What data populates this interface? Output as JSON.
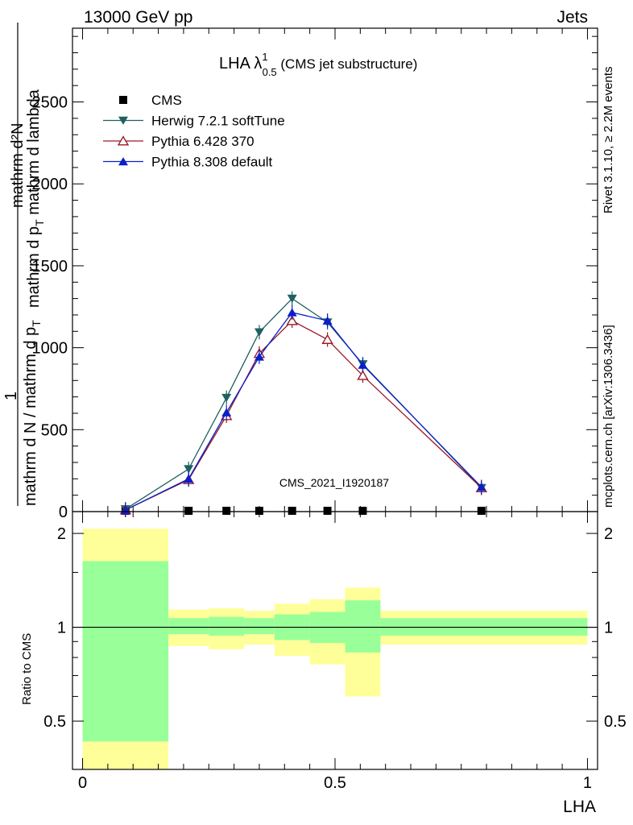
{
  "header": {
    "left": "13000 GeV pp",
    "right": "Jets"
  },
  "side": {
    "top": "Rivet 3.1.10, ≥ 2.2M events",
    "bottom": "mcplots.cern.ch [arXiv:1306.3436]"
  },
  "watermark": "CMS_2021_I1920187",
  "main": {
    "title": "LHA λ",
    "title_sup": "1",
    "title_sub": "0.5",
    "title_suffix": " (CMS jet substructure)",
    "ylabel_line1": "mathrm d²N",
    "ylabel_line2": "mathrm d p",
    "ylabel_line2_sub": "T",
    "ylabel_line2_suffix": " mathrm d lambda",
    "ylabel_top": "1",
    "ylabel_bottom": "mathrm d N / mathrm d p",
    "ylabel_bottom_sub": "T"
  },
  "ratio": {
    "ylabel": "Ratio to CMS"
  },
  "xlabel": "LHA",
  "chart_data": [
    {
      "type": "line",
      "x": [
        0.085,
        0.21,
        0.285,
        0.35,
        0.415,
        0.485,
        0.555,
        0.79
      ],
      "xlim": [
        -0.02,
        1.02
      ],
      "ylim": [
        0,
        2950
      ],
      "yticks": [
        0,
        500,
        1000,
        1500,
        2000,
        2500
      ],
      "ytick_labels": [
        "0",
        "500",
        "1000",
        "1500",
        "2000",
        "2500"
      ],
      "legend_position": "top-left",
      "series": [
        {
          "name": "CMS",
          "marker": "square",
          "color": "#000000",
          "values": [
            0,
            0,
            0,
            0,
            0,
            0,
            0,
            0
          ]
        },
        {
          "name": "Herwig 7.2.1 softTune",
          "marker": "triangle-down",
          "color": "#1f6060",
          "values": [
            15,
            260,
            695,
            1095,
            1300,
            1155,
            900,
            145
          ]
        },
        {
          "name": "Pythia 6.428 370",
          "marker": "triangle-up-open",
          "color": "#9b1b2a",
          "values": [
            10,
            195,
            585,
            965,
            1165,
            1050,
            830,
            145
          ]
        },
        {
          "name": "Pythia 8.308 default",
          "marker": "triangle-up",
          "color": "#0a1fc9",
          "values": [
            10,
            200,
            605,
            945,
            1215,
            1165,
            895,
            150
          ]
        }
      ]
    },
    {
      "type": "area",
      "title": "Ratio to CMS",
      "bin_edges": [
        0,
        0.17,
        0.25,
        0.32,
        0.38,
        0.45,
        0.52,
        0.59,
        1.0
      ],
      "center": 1.0,
      "inner_band": {
        "color": "#99ff99",
        "low": [
          0.43,
          0.95,
          0.94,
          0.95,
          0.91,
          0.89,
          0.83,
          0.94
        ],
        "high": [
          1.63,
          1.07,
          1.08,
          1.07,
          1.1,
          1.12,
          1.22,
          1.07
        ]
      },
      "outer_band": {
        "color": "#ffff99",
        "low": [
          0.35,
          0.87,
          0.85,
          0.88,
          0.81,
          0.76,
          0.6,
          0.88
        ],
        "high": [
          2.07,
          1.14,
          1.15,
          1.13,
          1.19,
          1.23,
          1.34,
          1.13
        ]
      },
      "ylim": [
        0.35,
        2.35
      ],
      "log_y": true,
      "yticks": [
        0.5,
        1,
        2
      ],
      "ytick_labels": [
        "0.5",
        "1",
        "2"
      ],
      "xticks": [
        0,
        0.5,
        1
      ],
      "xtick_labels": [
        "0",
        "0.5",
        "1"
      ],
      "xlabel": "LHA"
    }
  ]
}
